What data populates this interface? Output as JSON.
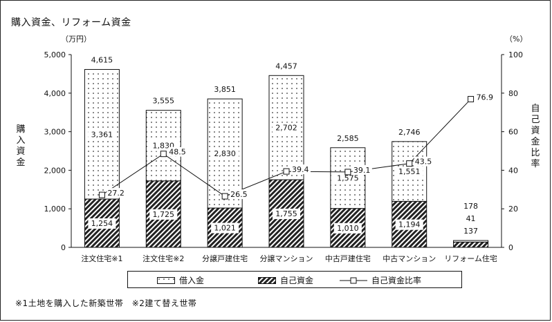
{
  "title": "購入資金、リフォーム資金",
  "left_unit": "（万円）",
  "right_unit": "（%）",
  "left_axis_label": "購入資金",
  "right_axis_label": "自己資金比率",
  "note": "※1土地を購入した新築世帯　※2建て替え世帯",
  "legend": [
    {
      "label": "借入金",
      "key": "loan"
    },
    {
      "label": "自己資金",
      "key": "own"
    },
    {
      "label": "自己資金比率",
      "key": "ratio"
    }
  ],
  "chart_data": {
    "type": "bar",
    "stacked": true,
    "categories": [
      "注文住宅※1",
      "注文住宅※2",
      "分譲戸建住宅",
      "分譲マンション",
      "中古戸建住宅",
      "中古マンション",
      "リフォーム住宅"
    ],
    "series": [
      {
        "name": "自己資金",
        "values": [
          1254,
          1725,
          1021,
          1755,
          1010,
          1194,
          137
        ],
        "labels": [
          "1,254",
          "1,725",
          "1,021",
          "1,755",
          "1,010",
          "1,194",
          "137"
        ]
      },
      {
        "name": "借入金",
        "values": [
          3361,
          1830,
          2830,
          2702,
          1575,
          1551,
          41
        ],
        "labels": [
          "3,361",
          "1,830",
          "2,830",
          "2,702",
          "1,575",
          "1,551",
          "41"
        ]
      }
    ],
    "totals": [
      4615,
      3555,
      3851,
      4457,
      2585,
      2746,
      178
    ],
    "total_labels": [
      "4,615",
      "3,555",
      "3,851",
      "4,457",
      "2,585",
      "2,746",
      "178"
    ],
    "line_series": {
      "name": "自己資金比率",
      "values": [
        27.2,
        48.5,
        26.5,
        39.4,
        39.1,
        43.5,
        76.9
      ],
      "labels": [
        "27.2",
        "48.5",
        "26.5",
        "39.4",
        "39.1",
        "43.5",
        "76.9"
      ]
    },
    "y_left": {
      "min": 0,
      "max": 5000,
      "ticks": [
        "0",
        "1,000",
        "2,000",
        "3,000",
        "4,000",
        "5,000"
      ]
    },
    "y_right": {
      "min": 0,
      "max": 100,
      "ticks": [
        "0",
        "20",
        "40",
        "60",
        "80",
        "100"
      ]
    }
  }
}
